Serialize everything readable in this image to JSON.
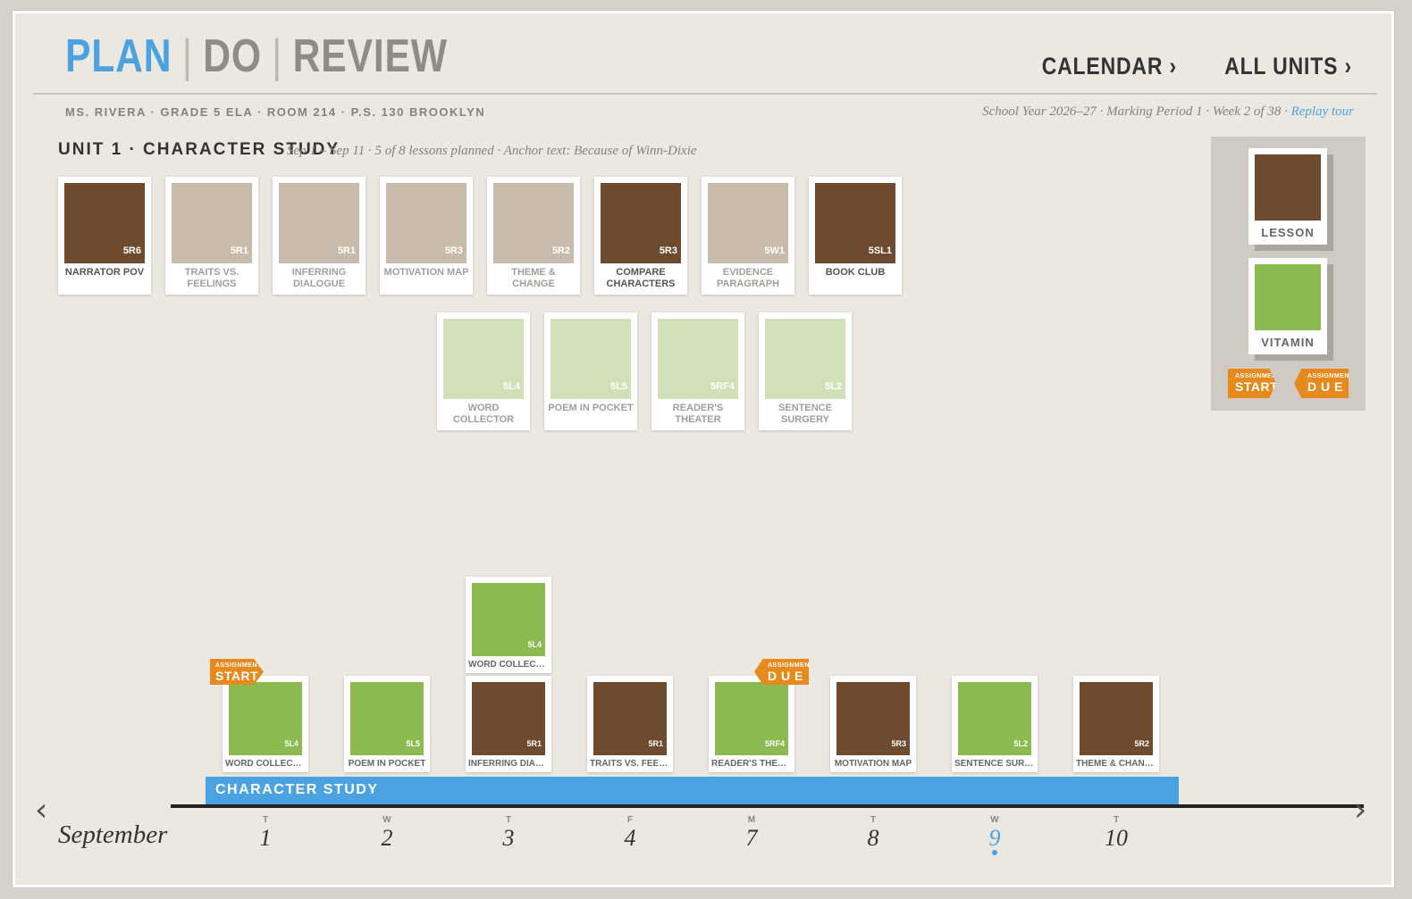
{
  "header": {
    "modes": [
      "PLAN",
      "DO",
      "REVIEW"
    ],
    "separator": "|",
    "links": [
      "CALENDAR ›",
      "ALL UNITS ›"
    ]
  },
  "meta": {
    "teacher_line": "MS. RIVERA · GRADE 5 ELA · ROOM 214 · P.S. 130 BROOKLYN",
    "year_line": "School Year 2026–27 · Marking Period 1 · Week 2 of 38 ·",
    "replay_tour": "Replay tour"
  },
  "unit": {
    "title": "UNIT 1 · CHARACTER STUDY",
    "subtitle": "Sep 1 – Sep 11 · 5 of 8 lessons planned · Anchor text: Because of Winn-Dixie"
  },
  "colors": {
    "lesson_dark": "#6e4b2e",
    "lesson_light": "#c8bbab",
    "vitamin": "#8bbb50",
    "vitamin_light": "#d1e1b7",
    "accent_blue": "#4aa3e0",
    "flag_orange": "#e78a1e"
  },
  "lessons": [
    {
      "code": "5R6",
      "label": "NARRATOR POV",
      "state": "dark"
    },
    {
      "code": "5R1",
      "label": "TRAITS VS. FEELINGS",
      "state": "light"
    },
    {
      "code": "5R1",
      "label": "INFERRING DIALOGUE",
      "state": "light"
    },
    {
      "code": "5R3",
      "label": "MOTIVATION MAP",
      "state": "light"
    },
    {
      "code": "5R2",
      "label": "THEME & CHANGE",
      "state": "light"
    },
    {
      "code": "5R3",
      "label": "COMPARE CHARACTERS",
      "state": "dark"
    },
    {
      "code": "5W1",
      "label": "EVIDENCE PARAGRAPH",
      "state": "light"
    },
    {
      "code": "5SL1",
      "label": "BOOK CLUB",
      "state": "dark"
    }
  ],
  "vitamins": [
    {
      "code": "5L4",
      "label": "WORD COLLECTOR"
    },
    {
      "code": "5L5",
      "label": "POEM IN POCKET"
    },
    {
      "code": "5RF4",
      "label": "READER'S THEATER"
    },
    {
      "code": "5L2",
      "label": "SENTENCE SURGERY"
    }
  ],
  "legend": {
    "lesson": "LESSON",
    "vitamin": "VITAMIN",
    "start_small": "ASSIGNMENT",
    "start_big": "START",
    "due_small": "ASSIGNMENT",
    "due_big": "D U E"
  },
  "timeline": {
    "unit_bar": "CHARACTER STUDY",
    "month": "September",
    "prev": "‹",
    "next": "›",
    "days": [
      {
        "wd": "T",
        "num": "1"
      },
      {
        "wd": "W",
        "num": "2"
      },
      {
        "wd": "T",
        "num": "3"
      },
      {
        "wd": "F",
        "num": "4"
      },
      {
        "wd": "M",
        "num": "7"
      },
      {
        "wd": "T",
        "num": "8"
      },
      {
        "wd": "W",
        "num": "9"
      },
      {
        "wd": "T",
        "num": "10"
      }
    ],
    "scheduled": [
      {
        "code": "5L4",
        "label": "WORD COLLECTOR",
        "kind": "vitamin"
      },
      {
        "code": "5L5",
        "label": "POEM IN POCKET",
        "kind": "vitamin"
      },
      {
        "code": "5R1",
        "label": "INFERRING DIALOG...",
        "kind": "lesson"
      },
      {
        "code": "5R1",
        "label": "TRAITS VS. FEELIN...",
        "kind": "lesson"
      },
      {
        "code": "5RF4",
        "label": "READER'S THEATER",
        "kind": "vitamin"
      },
      {
        "code": "5R3",
        "label": "MOTIVATION MAP",
        "kind": "lesson"
      },
      {
        "code": "5L2",
        "label": "SENTENCE SURGERY",
        "kind": "vitamin"
      },
      {
        "code": "5R2",
        "label": "THEME & CHANGE",
        "kind": "lesson"
      }
    ],
    "stacked": {
      "code": "5L4",
      "label": "WORD COLLECTOR",
      "kind": "vitamin"
    },
    "start_flag": {
      "small": "ASSIGNMENT",
      "big": "START"
    },
    "due_flag": {
      "small": "ASSIGNMENT",
      "big": "D U E"
    }
  }
}
